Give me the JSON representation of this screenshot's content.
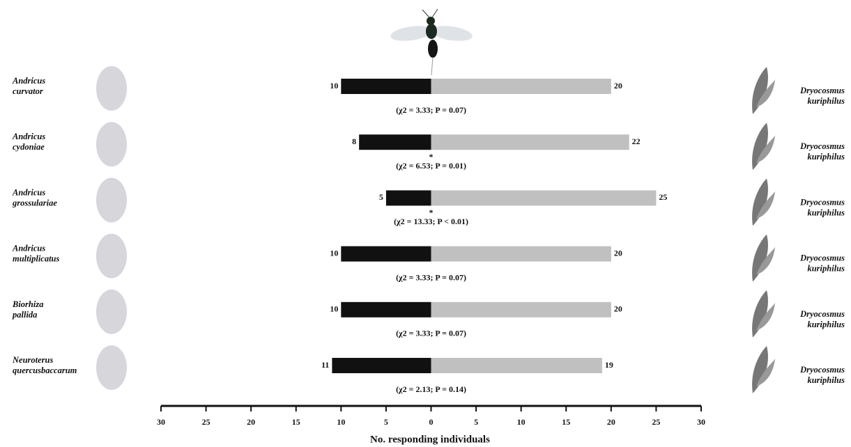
{
  "chart_data": {
    "type": "diverging_bar",
    "categories": [
      [
        "Andricus",
        "curvator"
      ],
      [
        "Andricus",
        "cydoniae"
      ],
      [
        "Andricus",
        "grossulariae"
      ],
      [
        "Andricus",
        "multiplicatus"
      ],
      [
        "Biorhiza",
        "pallida"
      ],
      [
        "Neuroterus",
        "quercusbaccarum"
      ]
    ],
    "right_labels": [
      [
        "Dryocosmus",
        "kuriphilus"
      ],
      [
        "Dryocosmus",
        "kuriphilus"
      ],
      [
        "Dryocosmus",
        "kuriphilus"
      ],
      [
        "Dryocosmus",
        "kuriphilus"
      ],
      [
        "Dryocosmus",
        "kuriphilus"
      ],
      [
        "Dryocosmus",
        "kuriphilus"
      ]
    ],
    "series": [
      {
        "color": "#111111",
        "values": [
          -10,
          -8,
          -5,
          -10,
          -10,
          -11
        ],
        "value_labels": [
          "10",
          "8",
          "5",
          "10",
          "10",
          "11"
        ]
      },
      {
        "color": "#c0c0c0",
        "values": [
          20,
          22,
          25,
          20,
          20,
          19
        ]
      }
    ],
    "annotations": [
      "(χ2 = 3.33; P = 0.07)",
      "(χ2 = 6.53; P = 0.01)",
      "(χ2 = 13.33; P < 0.01)",
      "(χ2 = 3.33; P = 0.07)",
      "(χ2 = 3.33; P = 0.07)",
      "(χ2 = 2.13; P = 0.14)"
    ],
    "significance": [
      null,
      "*",
      "*",
      null,
      null,
      null
    ],
    "xlabel": "No. responding individuals",
    "xlim": [
      -30,
      30
    ],
    "xticks": [
      {
        "value": -30,
        "label": "30"
      },
      {
        "value": -25,
        "label": "25"
      },
      {
        "value": -20,
        "label": "20"
      },
      {
        "value": -15,
        "label": "15"
      },
      {
        "value": -10,
        "label": "10"
      },
      {
        "value": -5,
        "label": "5"
      },
      0,
      5,
      10,
      15,
      20,
      25,
      30
    ],
    "grid": false
  }
}
